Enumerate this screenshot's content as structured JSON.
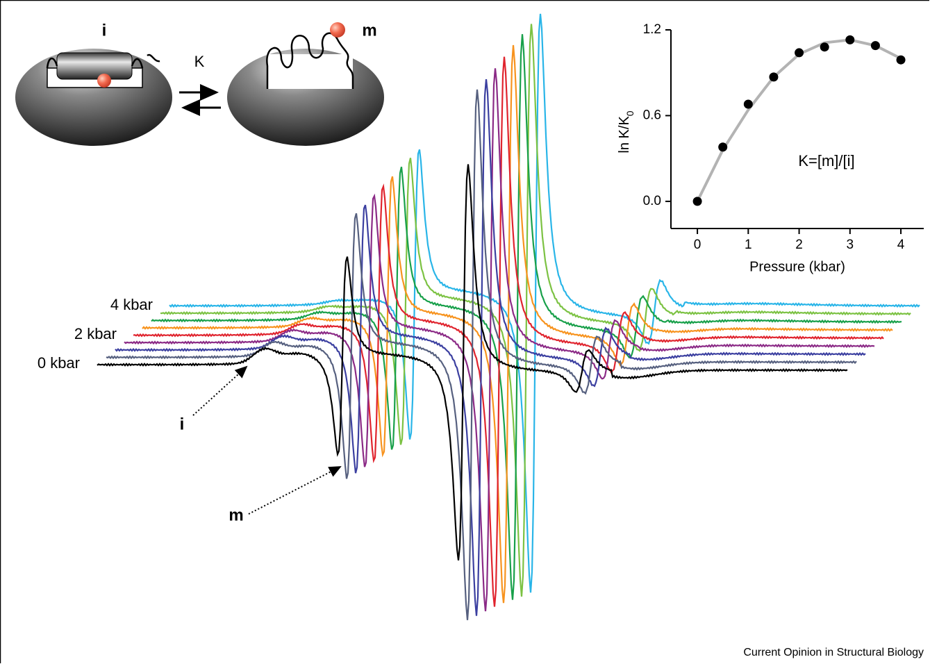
{
  "diagram": {
    "state_i": "i",
    "state_m": "m",
    "constant": "K"
  },
  "spectra": {
    "labels": [
      "4 kbar",
      "2 kbar",
      "0 kbar"
    ],
    "annotations": [
      "i",
      "m"
    ]
  },
  "chart_data": {
    "type": "scatter",
    "x": [
      0,
      0.5,
      1,
      1.5,
      2,
      2.5,
      3,
      3.5,
      4
    ],
    "values": [
      0,
      0.38,
      0.68,
      0.87,
      1.04,
      1.08,
      1.13,
      1.09,
      0.99
    ],
    "color": "#000000",
    "fit": {
      "color": "#b3b3b3",
      "values": [
        0,
        0.36,
        0.64,
        0.87,
        1.03,
        1.11,
        1.13,
        1.09,
        1.0
      ]
    },
    "xlim": [
      -0.52,
      4.45
    ],
    "ylim": [
      -0.19,
      1.2
    ],
    "xticks": [
      0,
      1,
      2,
      3,
      4
    ],
    "yticks": [
      {
        "value": 0,
        "label": "0.0"
      },
      0.6,
      1.2
    ],
    "xlabel": "Pressure (kbar)",
    "ylabel": {
      "text": "ln K/K",
      "subscript": "0"
    },
    "annotation": "K=[m]/[i]"
  },
  "source": "Current Opinion in Structural Biology"
}
